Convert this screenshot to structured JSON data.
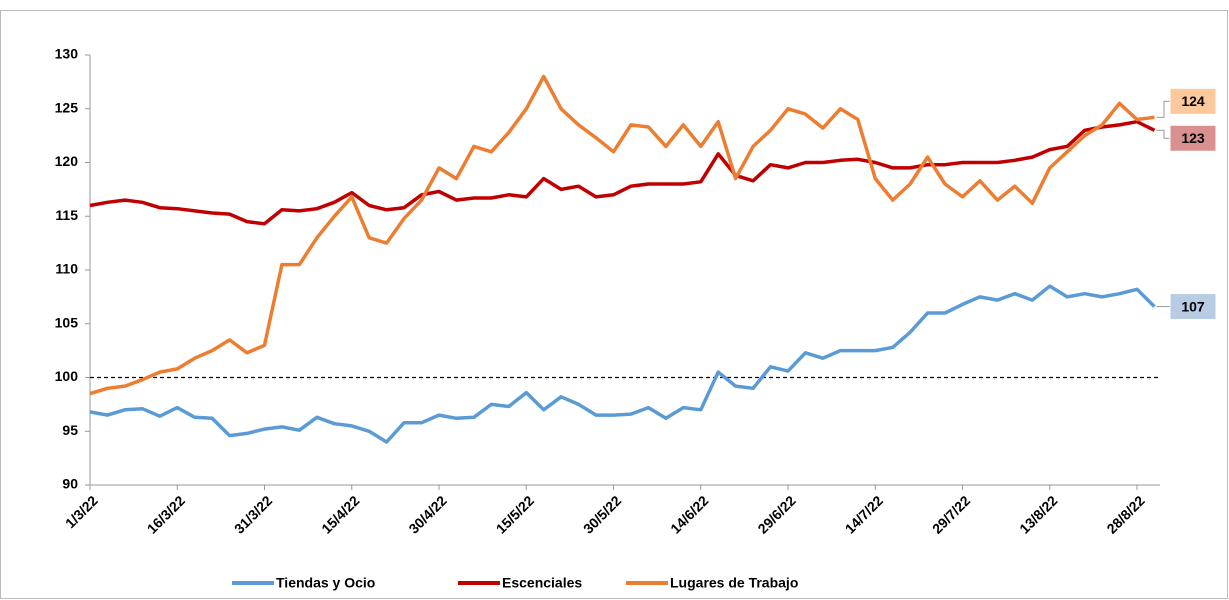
{
  "chart_data": {
    "type": "line",
    "categories": [
      "1/3/22",
      null,
      null,
      null,
      null,
      "16/3/22",
      null,
      null,
      null,
      null,
      "31/3/22",
      null,
      null,
      null,
      null,
      "15/4/22",
      null,
      null,
      null,
      null,
      "30/4/22",
      null,
      null,
      null,
      null,
      "15/5/22",
      null,
      null,
      null,
      null,
      "30/5/22",
      null,
      null,
      null,
      null,
      "14/6/22",
      null,
      null,
      null,
      null,
      "29/6/22",
      null,
      null,
      null,
      null,
      "14/7/22",
      null,
      null,
      null,
      null,
      "29/7/22",
      null,
      null,
      null,
      null,
      "13/8/22",
      null,
      null,
      null,
      null,
      "28/8/22",
      null
    ],
    "series": [
      {
        "name": "Tiendas y Ocio",
        "color": "#5b9bd5",
        "end_label": "107",
        "label_color": "#b8cce4",
        "values": [
          96.8,
          96.5,
          97.0,
          97.1,
          96.4,
          97.2,
          96.3,
          96.2,
          94.6,
          94.8,
          95.2,
          95.4,
          95.1,
          96.3,
          95.7,
          95.5,
          95.0,
          94.0,
          95.8,
          95.8,
          96.5,
          96.2,
          96.3,
          97.5,
          97.3,
          98.6,
          97.0,
          98.2,
          97.5,
          96.5,
          96.5,
          96.6,
          97.2,
          96.2,
          97.2,
          97.0,
          100.5,
          99.2,
          99.0,
          101.0,
          100.6,
          102.3,
          101.8,
          102.5,
          102.5,
          102.5,
          102.8,
          104.2,
          106.0,
          106.0,
          106.8,
          107.5,
          107.2,
          107.8,
          107.2,
          108.5,
          107.5,
          107.8,
          107.5,
          107.8,
          108.2,
          106.6
        ]
      },
      {
        "name": "Escenciales",
        "color": "#c00000",
        "end_label": "123",
        "label_color": "#d9908f",
        "values": [
          116.0,
          116.3,
          116.5,
          116.3,
          115.8,
          115.7,
          115.5,
          115.3,
          115.2,
          114.5,
          114.3,
          115.6,
          115.5,
          115.7,
          116.3,
          117.2,
          116.0,
          115.6,
          115.8,
          117.0,
          117.3,
          116.5,
          116.7,
          116.7,
          117.0,
          116.8,
          118.5,
          117.5,
          117.8,
          116.8,
          117.0,
          117.8,
          118.0,
          118.0,
          118.0,
          118.2,
          120.8,
          118.8,
          118.3,
          119.8,
          119.5,
          120.0,
          120.0,
          120.2,
          120.3,
          120.0,
          119.5,
          119.5,
          119.8,
          119.8,
          120.0,
          120.0,
          120.0,
          120.2,
          120.5,
          121.2,
          121.5,
          123.0,
          123.3,
          123.5,
          123.8,
          123.0
        ]
      },
      {
        "name": "Lugares de Trabajo",
        "color": "#ed7d31",
        "end_label": "124",
        "label_color": "#fbc99b",
        "values": [
          98.5,
          99.0,
          99.2,
          99.8,
          100.5,
          100.8,
          101.8,
          102.5,
          103.5,
          102.3,
          103.0,
          110.5,
          110.5,
          113.0,
          115.0,
          116.8,
          113.0,
          112.5,
          114.8,
          116.5,
          119.5,
          118.5,
          121.5,
          121.0,
          122.8,
          125.0,
          128.0,
          125.0,
          123.5,
          122.3,
          121.0,
          123.5,
          123.3,
          121.5,
          123.5,
          121.5,
          123.8,
          118.5,
          121.5,
          123.0,
          125.0,
          124.5,
          123.2,
          125.0,
          124.0,
          118.5,
          116.5,
          118.0,
          120.5,
          118.0,
          116.8,
          118.3,
          116.5,
          117.8,
          116.2,
          119.5,
          121.0,
          122.5,
          123.5,
          125.5,
          124.0,
          124.2
        ]
      }
    ],
    "ylim": [
      90,
      130
    ],
    "yticks": [
      90,
      95,
      100,
      105,
      110,
      115,
      120,
      125,
      130
    ],
    "hline": 100,
    "legend": "bottom"
  }
}
